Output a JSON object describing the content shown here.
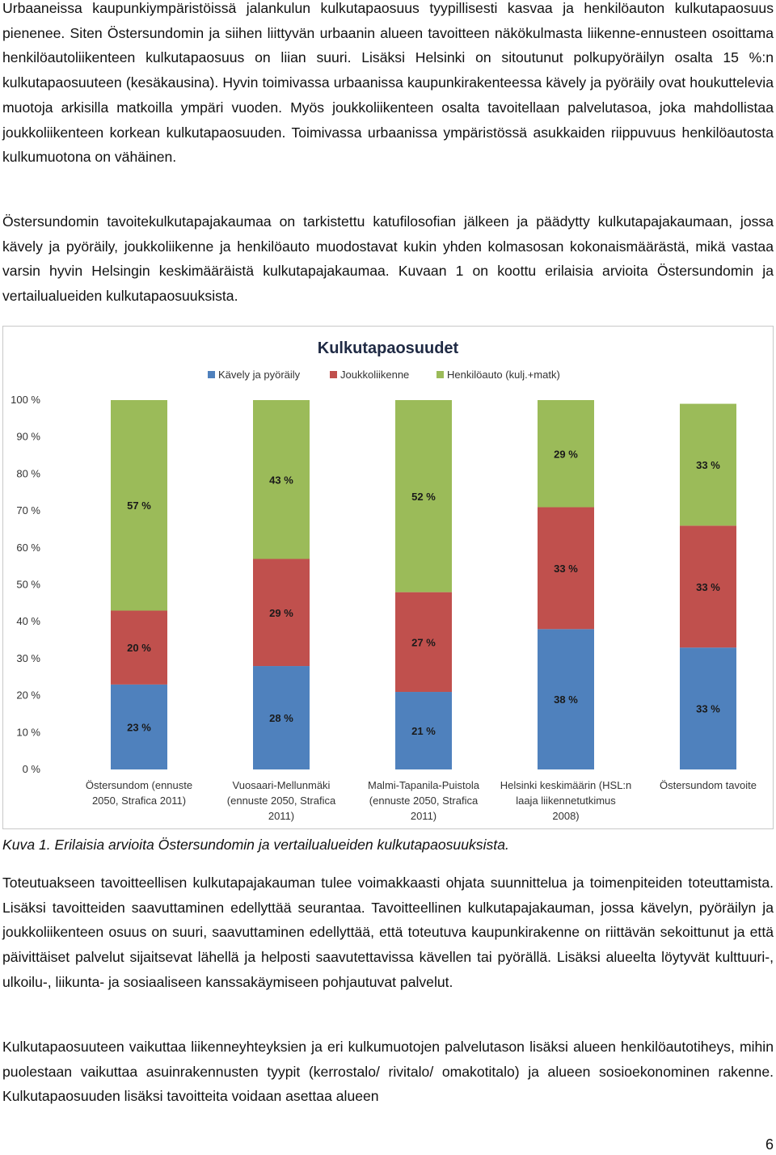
{
  "paragraphs": [
    "Urbaaneissa kaupunkiympäristöissä jalankulun kulkutapaosuus tyypillisesti kasvaa ja henkilöauton kulkutapaosuus pienenee. Siten Östersundomin ja siihen liittyvän urbaanin alueen tavoitteen näkökulmasta liikenne-ennusteen osoittama henkilöautoliikenteen kulkutapaosuus on liian suuri. Lisäksi Helsinki on sitoutunut polkupyöräilyn osalta 15 %:n kulkutapaosuuteen (kesäkausina). Hyvin toimivassa urbaanissa kaupunkirakenteessa kävely ja pyöräily ovat houkuttelevia muotoja arkisilla matkoilla ympäri vuoden. Myös joukkoliikenteen osalta tavoitellaan palvelutasoa, joka mahdollistaa joukkoliikenteen korkean kulkutapaosuuden. Toimivassa urbaanissa ympäristössä asukkaiden riippuvuus henkilöautosta kulkumuotona on vähäinen.",
    "Östersundomin tavoitekulkutapajakaumaa on tarkistettu katufilosofian jälkeen ja päädytty kulkutapajakaumaan, jossa kävely ja pyöräily, joukkoliikenne ja henkilöauto muodostavat kukin yhden kolmasosan kokonaismäärästä, mikä vastaa varsin hyvin Helsingin keskimääräistä kulkutapajakaumaa. Kuvaan 1 on koottu erilaisia arvioita Östersundomin ja vertailualueiden kulkutapaosuuksista.",
    "Toteutuakseen tavoitteellisen kulkutapajakauman tulee voimakkaasti ohjata suunnittelua ja toimenpiteiden toteuttamista. Lisäksi tavoitteiden saavuttaminen edellyttää seurantaa. Tavoitteellinen kulkutapajakauman, jossa kävelyn, pyöräilyn ja joukkoliikenteen osuus on suuri, saavuttaminen edellyttää, että toteutuva kaupunkirakenne on riittävän sekoittunut ja että päivittäiset palvelut sijaitsevat lähellä ja helposti saavutettavissa kävellen tai pyörällä. Lisäksi alueelta löytyvät kulttuuri-, ulkoilu-, liikunta- ja sosiaaliseen kanssakäymiseen pohjautuvat palvelut.",
    "Kulkutapaosuuteen vaikuttaa liikenneyhteyksien ja eri kulkumuotojen palvelutason lisäksi alueen henkilöautotiheys, mihin puolestaan vaikuttaa asuinrakennusten tyypit (kerrostalo/ rivitalo/ omakotitalo) ja alueen sosioekonominen rakenne. Kulkutapaosuuden lisäksi tavoitteita voidaan asettaa alueen"
  ],
  "caption": "Kuva 1. Erilaisia arvioita Östersundomin ja vertailualueiden kulkutapaosuuksista.",
  "page_number": "6",
  "chart_data": {
    "type": "bar",
    "stacked": true,
    "title": "Kulkutapaosuudet",
    "categories": [
      [
        "Östersundom (ennuste",
        "2050, Strafica 2011)"
      ],
      [
        "Vuosaari-Mellunmäki",
        "(ennuste 2050, Strafica",
        "2011)"
      ],
      [
        "Malmi-Tapanila-Puistola",
        "(ennuste 2050, Strafica",
        "2011)"
      ],
      [
        "Helsinki keskimäärin (HSL:n",
        "laaja liikennetutkimus",
        "2008)"
      ],
      [
        "Östersundom tavoite"
      ]
    ],
    "series": [
      {
        "name": "Kävely ja pyöräily",
        "color": "#4f81bd",
        "values": [
          23,
          28,
          21,
          38,
          33
        ]
      },
      {
        "name": "Joukkoliikenne",
        "color": "#c0504d",
        "values": [
          20,
          29,
          27,
          33,
          33
        ]
      },
      {
        "name": "Henkilöauto (kulj.+matk)",
        "color": "#9bbb59",
        "values": [
          57,
          43,
          52,
          29,
          33
        ]
      }
    ],
    "data_labels": [
      [
        "23 %",
        "28 %",
        "21 %",
        "38 %",
        "33 %"
      ],
      [
        "20 %",
        "29 %",
        "27 %",
        "33 %",
        "33 %"
      ],
      [
        "57 %",
        "43 %",
        "52 %",
        "29 %",
        "33 %"
      ]
    ],
    "yticks": [
      "0 %",
      "10 %",
      "20 %",
      "30 %",
      "40 %",
      "50 %",
      "60 %",
      "70 %",
      "80 %",
      "90 %",
      "100 %"
    ],
    "ylim": [
      0,
      100
    ],
    "legend": "top",
    "grid": false
  }
}
